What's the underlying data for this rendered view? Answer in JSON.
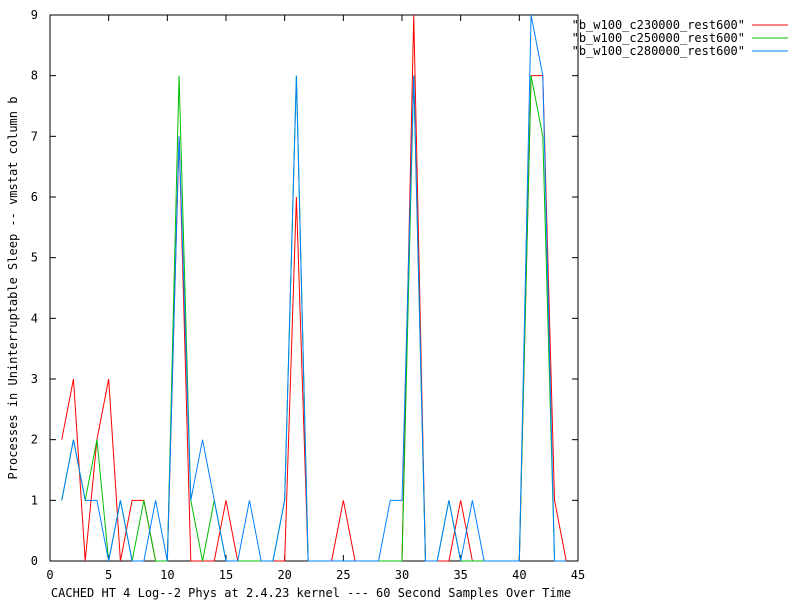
{
  "chart_data": {
    "type": "line",
    "xlabel": "CACHED HT 4 Log--2 Phys at 2.4.23 kernel --- 60 Second Samples Over Time",
    "ylabel": "Processes in Uninterruptable Sleep -- vmstat column b",
    "xlim": [
      0,
      45
    ],
    "ylim": [
      0,
      9
    ],
    "xticks": [
      0,
      5,
      10,
      15,
      20,
      25,
      30,
      35,
      40,
      45
    ],
    "yticks": [
      0,
      1,
      2,
      3,
      4,
      5,
      6,
      7,
      8,
      9
    ],
    "grid": false,
    "legend_position": "top-right outside",
    "x": [
      1,
      2,
      3,
      4,
      5,
      6,
      7,
      8,
      9,
      10,
      11,
      12,
      13,
      14,
      15,
      16,
      17,
      18,
      19,
      20,
      21,
      22,
      23,
      24,
      25,
      26,
      27,
      28,
      29,
      30,
      31,
      32,
      33,
      34,
      35,
      36,
      37,
      38,
      39,
      40,
      41,
      42,
      43,
      44
    ],
    "series": [
      {
        "name": "\"b_w100_c230000_rest600\"",
        "color": "#ff0000",
        "values": [
          2,
          3,
          0,
          2,
          3,
          0,
          1,
          1,
          0,
          0,
          7,
          0,
          0,
          0,
          1,
          0,
          0,
          0,
          0,
          0,
          6,
          0,
          0,
          0,
          1,
          0,
          0,
          0,
          0,
          0,
          9,
          0,
          0,
          0,
          1,
          0,
          0,
          0,
          0,
          0,
          8,
          8,
          1,
          0
        ]
      },
      {
        "name": "\"b_w100_c250000_rest600\"",
        "color": "#00c000",
        "values": [
          1,
          2,
          1,
          2,
          0,
          1,
          0,
          1,
          0,
          0,
          8,
          1,
          0,
          1,
          0,
          0,
          0,
          0,
          0,
          1,
          8,
          0,
          0,
          0,
          0,
          0,
          0,
          0,
          0,
          0,
          8,
          0,
          0,
          1,
          0,
          0,
          0,
          0,
          0,
          0,
          8,
          7,
          0,
          0
        ]
      },
      {
        "name": "\"b_w100_c280000_rest600\"",
        "color": "#0080ff",
        "values": [
          1,
          2,
          1,
          1,
          0,
          1,
          0,
          0,
          1,
          0,
          7,
          1,
          2,
          1,
          0,
          0,
          1,
          0,
          0,
          1,
          8,
          0,
          0,
          0,
          0,
          0,
          0,
          0,
          1,
          1,
          8,
          0,
          0,
          1,
          0,
          1,
          0,
          0,
          0,
          0,
          9,
          8,
          0,
          0
        ]
      }
    ]
  }
}
